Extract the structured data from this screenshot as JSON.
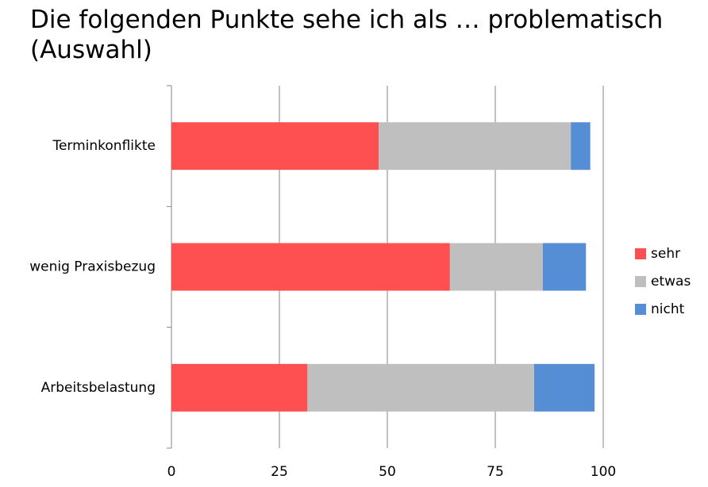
{
  "chart_data": {
    "type": "stacked-bar-horizontal",
    "title": "Die folgenden Punkte sehe ich als … problematisch (Auswahl)",
    "categories": [
      "Terminkonflikte",
      "wenig Praxisbezug",
      "Arbeitsbelastung"
    ],
    "series": [
      {
        "name": "sehr",
        "color": "#fe5050",
        "values": [
          48,
          64.5,
          31.5
        ]
      },
      {
        "name": "etwas",
        "color": "#bfbfbf",
        "values": [
          44.5,
          21.5,
          52.5
        ]
      },
      {
        "name": "nicht",
        "color": "#558ed5",
        "values": [
          4.5,
          10,
          14
        ]
      }
    ],
    "xlim": [
      0,
      100
    ],
    "xticks": [
      0,
      25,
      50,
      75,
      100
    ],
    "grid": true,
    "legend": "right"
  }
}
